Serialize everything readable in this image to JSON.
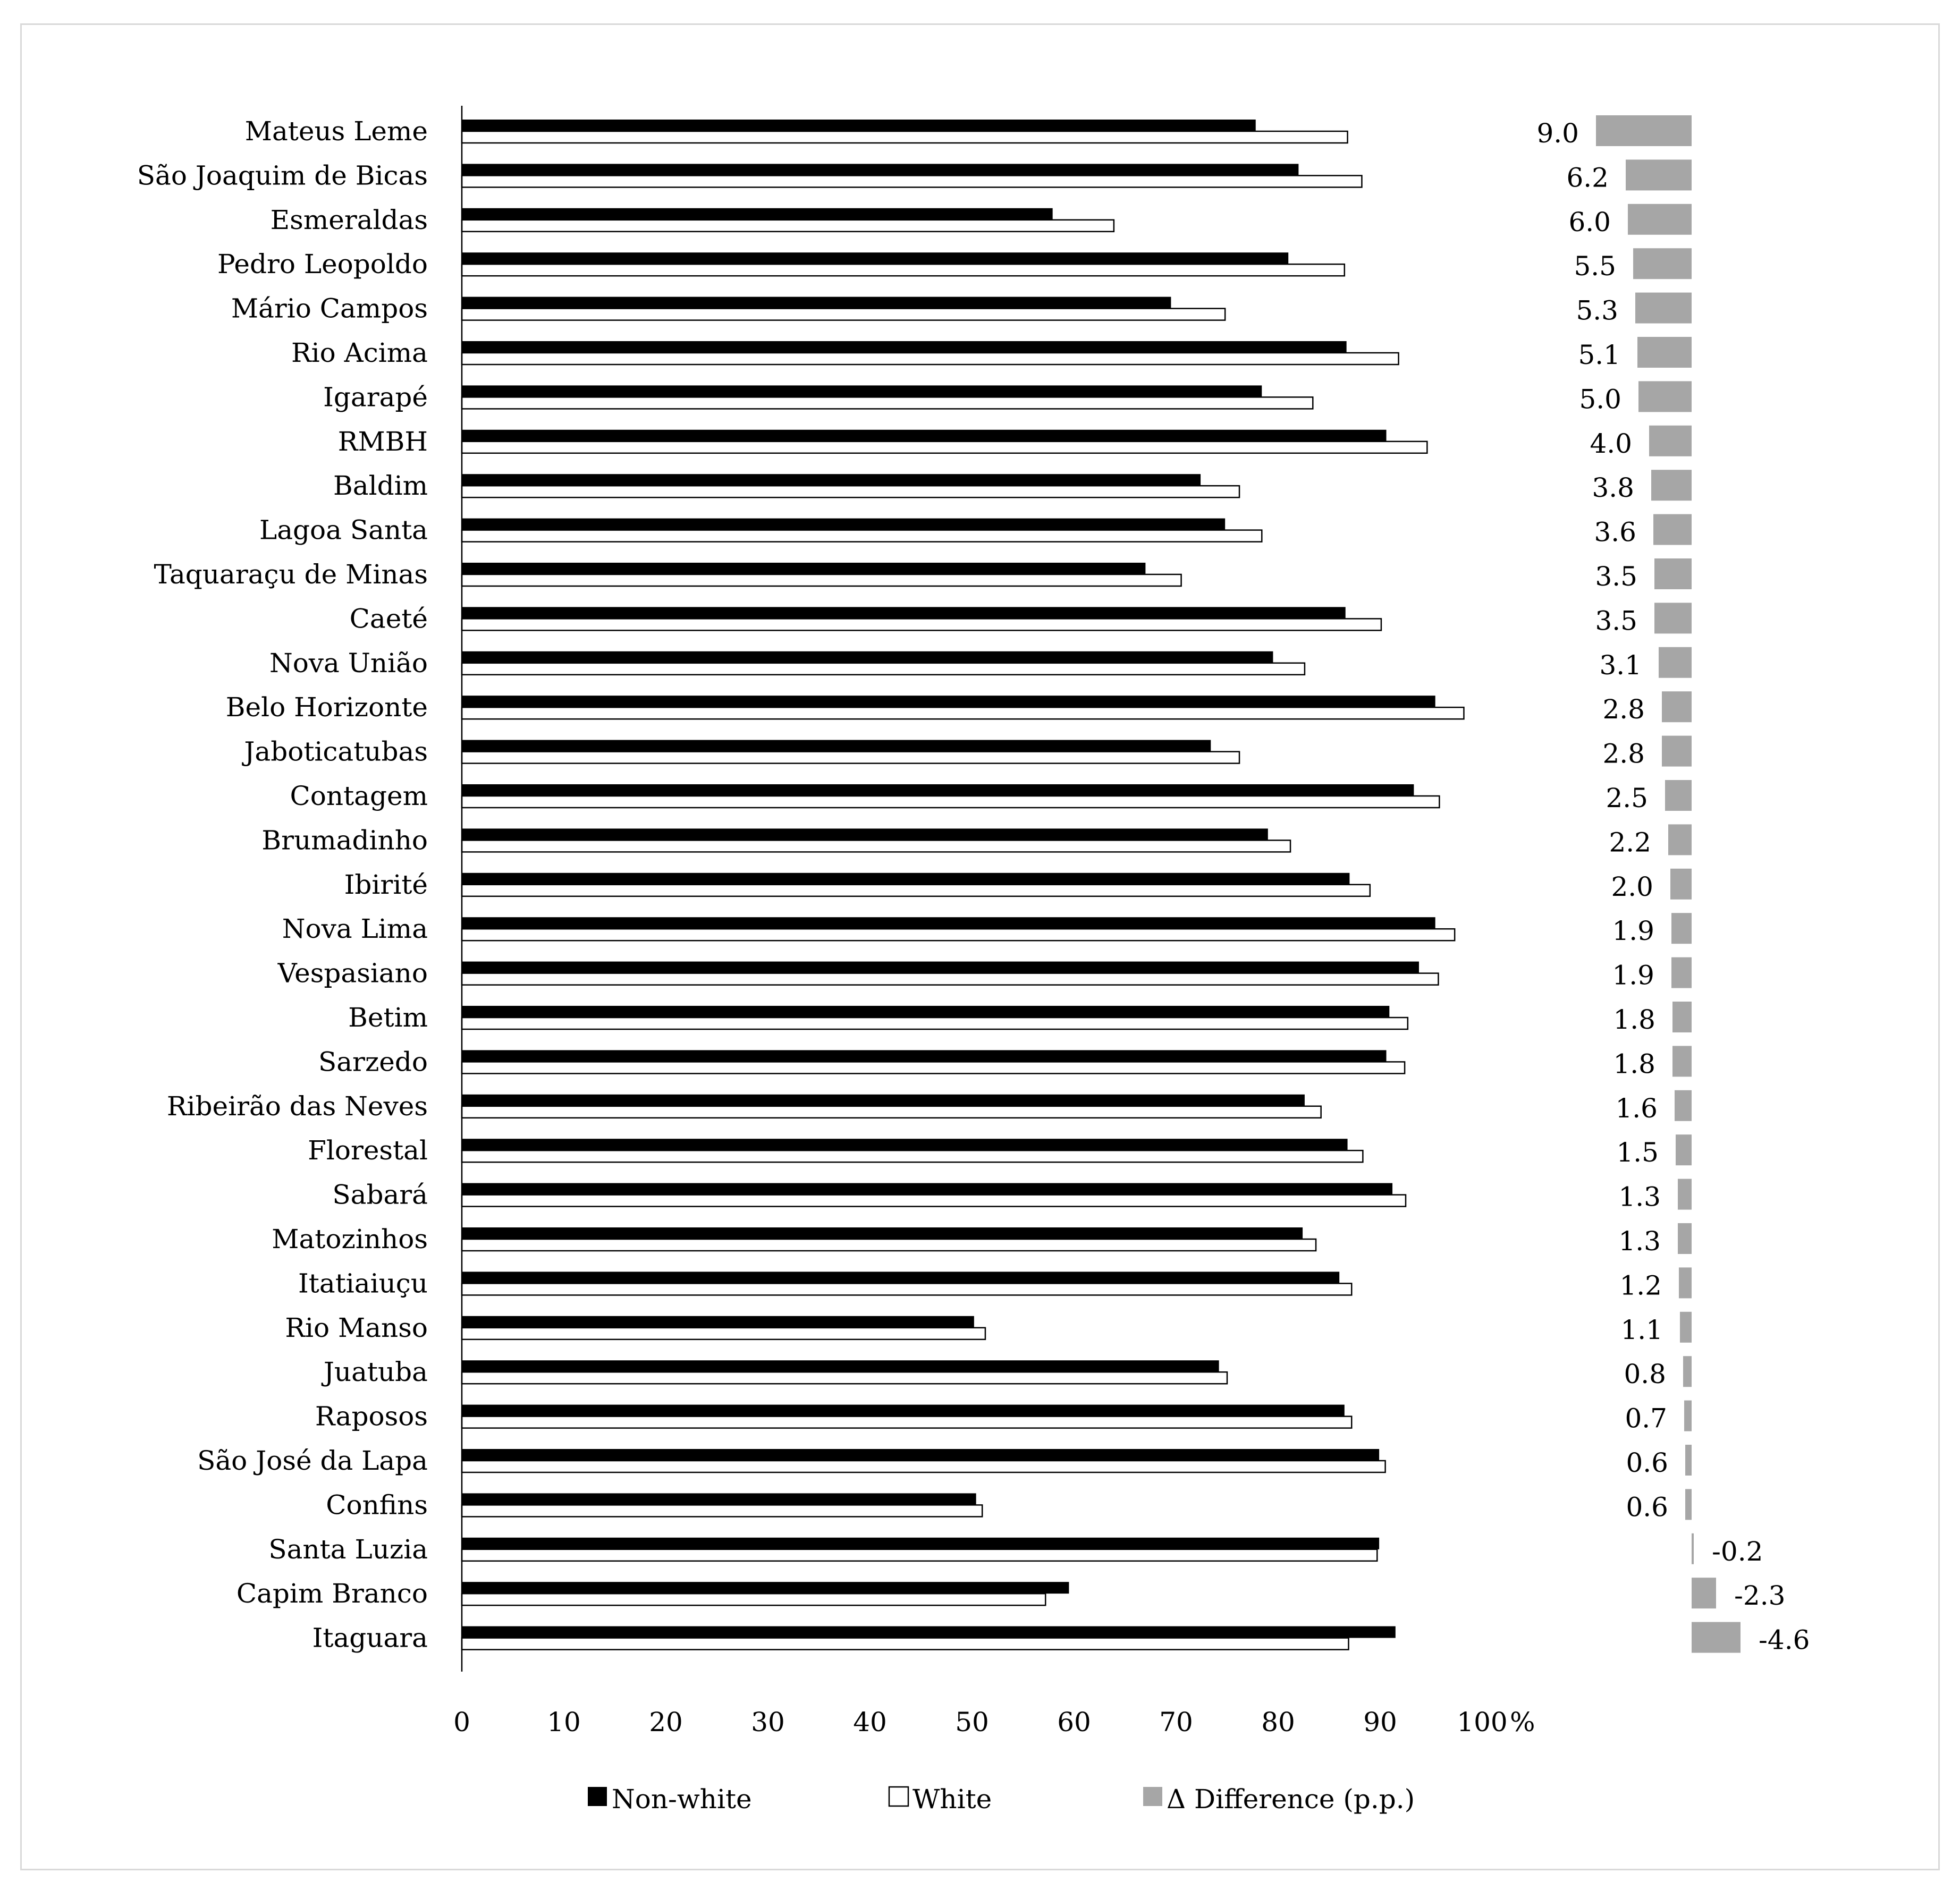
{
  "chart_data": {
    "type": "bar",
    "title": "",
    "xlabel": "",
    "x_unit": "%",
    "xlim": [
      0,
      100
    ],
    "xticks": [
      0,
      10,
      20,
      30,
      40,
      50,
      60,
      70,
      80,
      90,
      100
    ],
    "grid": false,
    "legend_position": "bottom",
    "categories": [
      "Mateus Leme",
      "São Joaquim de Bicas",
      "Esmeraldas",
      "Pedro Leopoldo",
      "Mário Campos",
      "Rio Acima",
      "Igarapé",
      "RMBH",
      "Baldim",
      "Lagoa Santa",
      "Taquaraçu de Minas",
      "Caeté",
      "Nova União",
      "Belo Horizonte",
      "Jaboticatubas",
      "Contagem",
      "Brumadinho",
      "Ibirité",
      "Nova Lima",
      "Vespasiano",
      "Betim",
      "Sarzedo",
      "Ribeirão das Neves",
      "Florestal",
      "Sabará",
      "Matozinhos",
      "Itatiaiuçu",
      "Rio Manso",
      "Juatuba",
      "Raposos",
      "São José da Lapa",
      "Confins",
      "Santa Luzia",
      "Capim Branco",
      "Itaguara"
    ],
    "series": [
      {
        "name": "Non-white",
        "color": "#000000",
        "values": [
          77.8,
          82.0,
          57.9,
          81.0,
          69.5,
          86.7,
          78.4,
          90.6,
          72.4,
          74.8,
          67.0,
          86.6,
          79.5,
          95.4,
          73.4,
          93.3,
          79.0,
          87.0,
          95.4,
          93.8,
          90.9,
          90.6,
          82.6,
          86.8,
          91.2,
          82.4,
          86.0,
          50.2,
          74.2,
          86.5,
          89.9,
          50.4,
          89.9,
          59.5,
          91.5
        ]
      },
      {
        "name": "White",
        "color": "#ffffff",
        "values": [
          86.8,
          88.2,
          63.9,
          86.5,
          74.8,
          91.8,
          83.4,
          94.6,
          76.2,
          78.4,
          70.5,
          90.1,
          82.6,
          98.2,
          76.2,
          95.8,
          81.2,
          89.0,
          97.3,
          95.7,
          92.7,
          92.4,
          84.2,
          88.3,
          92.5,
          83.7,
          87.2,
          51.3,
          75.0,
          87.2,
          90.5,
          51.0,
          89.7,
          57.2,
          86.9
        ]
      }
    ],
    "difference": {
      "name": "Δ Difference (p.p.)",
      "color": "#a6a6a6",
      "values": [
        9.0,
        6.2,
        6.0,
        5.5,
        5.3,
        5.1,
        5.0,
        4.0,
        3.8,
        3.6,
        3.5,
        3.5,
        3.1,
        2.8,
        2.8,
        2.5,
        2.2,
        2.0,
        1.9,
        1.9,
        1.8,
        1.8,
        1.6,
        1.5,
        1.3,
        1.3,
        1.2,
        1.1,
        0.8,
        0.7,
        0.6,
        0.6,
        -0.2,
        -2.3,
        -4.6
      ],
      "labels": [
        "9.0",
        "6.2",
        "6.0",
        "5.5",
        "5.3",
        "5.1",
        "5.0",
        "4.0",
        "3.8",
        "3.6",
        "3.5",
        "3.5",
        "3.1",
        "2.8",
        "2.8",
        "2.5",
        "2.2",
        "2.0",
        "1.9",
        "1.9",
        "1.8",
        "1.8",
        "1.6",
        "1.5",
        "1.3",
        "1.3",
        "1.2",
        "1.1",
        "0.8",
        "0.7",
        "0.6",
        "0.6",
        "-0.2",
        "-2.3",
        "-4.6"
      ]
    },
    "legend": [
      "Non-white",
      "White",
      "Δ Difference (p.p.)"
    ]
  }
}
